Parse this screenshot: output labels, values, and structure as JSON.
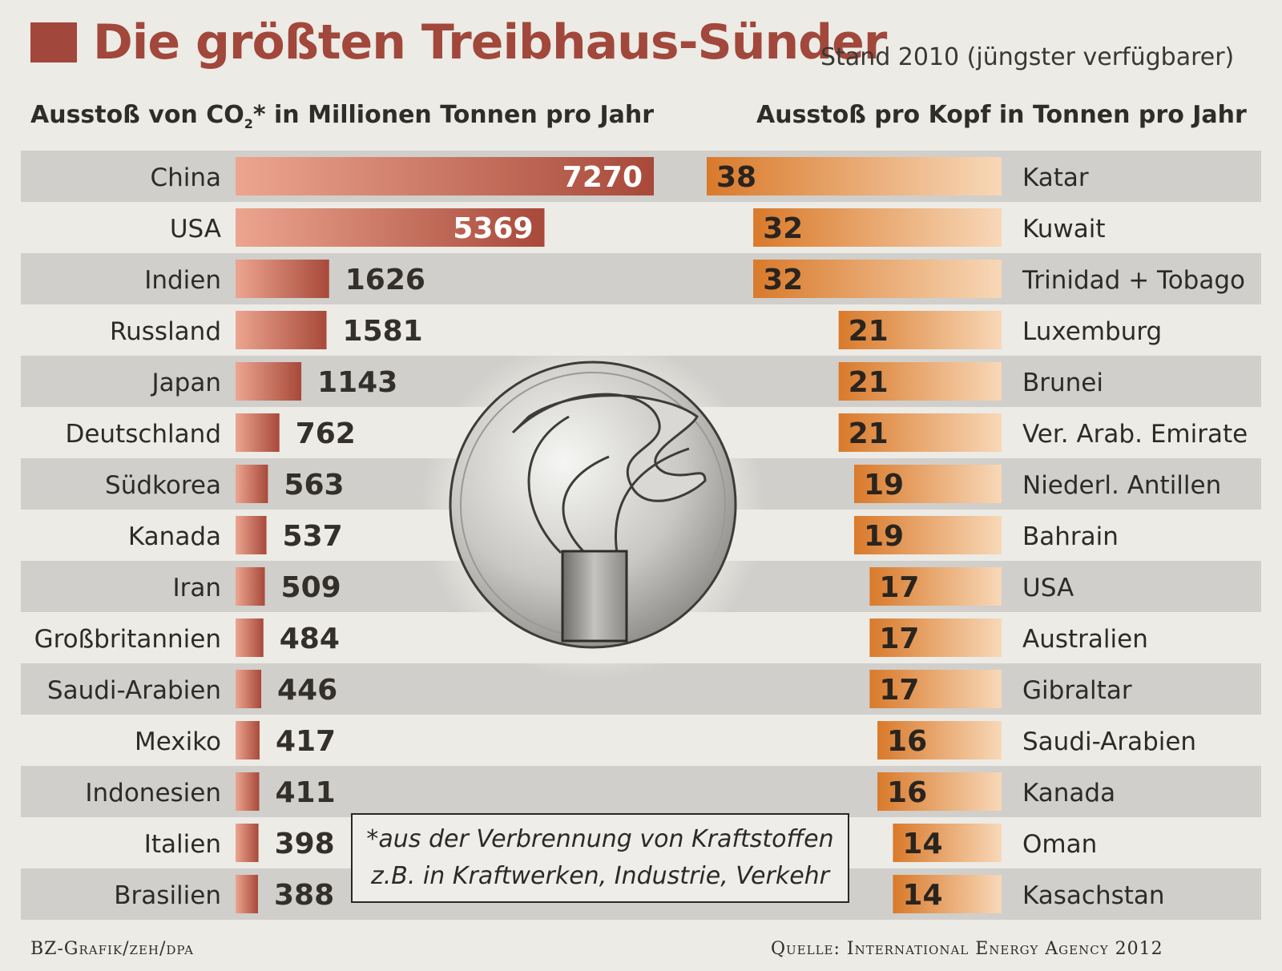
{
  "title": "Die größten Treibhaus-Sünder",
  "stand_note": "Stand 2010 (jüngster verfügbarer)",
  "left_heading_pre": "Ausstoß von CO",
  "left_heading_sub": "2",
  "left_heading_post": "* in Millionen Tonnen pro Jahr",
  "right_heading": "Ausstoß pro Kopf in Tonnen pro Jahr",
  "footnote_line1": "*aus der Verbrennung von Kraftstoffen",
  "footnote_line2": "z.B. in Kraftwerken, Industrie, Verkehr",
  "credit_left": "BZ-Grafik/zeh/dpa",
  "credit_right": "Quelle: International Energy Agency 2012",
  "icon": "smokestack-icon",
  "colors": {
    "title": "#a2473b",
    "left_bar_dark": "#a8493a",
    "left_bar_light": "#eca590",
    "right_bar_dark": "#d97a2b",
    "right_bar_light": "#f8d8b8",
    "band": "#d0cfcb"
  },
  "chart_data": [
    {
      "type": "bar",
      "title": "Ausstoß von CO2* in Millionen Tonnen pro Jahr",
      "categories": [
        "China",
        "USA",
        "Indien",
        "Russland",
        "Japan",
        "Deutschland",
        "Südkorea",
        "Kanada",
        "Iran",
        "Großbritannien",
        "Saudi-Arabien",
        "Mexiko",
        "Indonesien",
        "Italien",
        "Brasilien"
      ],
      "values": [
        7270,
        5369,
        1626,
        1581,
        1143,
        762,
        563,
        537,
        509,
        484,
        446,
        417,
        411,
        398,
        388
      ],
      "xlim": [
        0,
        7270
      ],
      "orientation": "horizontal"
    },
    {
      "type": "bar",
      "title": "Ausstoß pro Kopf in Tonnen pro Jahr",
      "categories": [
        "Katar",
        "Kuwait",
        "Trinidad + Tobago",
        "Luxemburg",
        "Brunei",
        "Ver. Arab. Emirate",
        "Niederl. Antillen",
        "Bahrain",
        "USA",
        "Australien",
        "Gibraltar",
        "Saudi-Arabien",
        "Kanada",
        "Oman",
        "Kasachstan"
      ],
      "values": [
        38,
        32,
        32,
        21,
        21,
        21,
        19,
        19,
        17,
        17,
        17,
        16,
        16,
        14,
        14
      ],
      "xlim": [
        0,
        38
      ],
      "orientation": "horizontal-right-aligned"
    }
  ]
}
